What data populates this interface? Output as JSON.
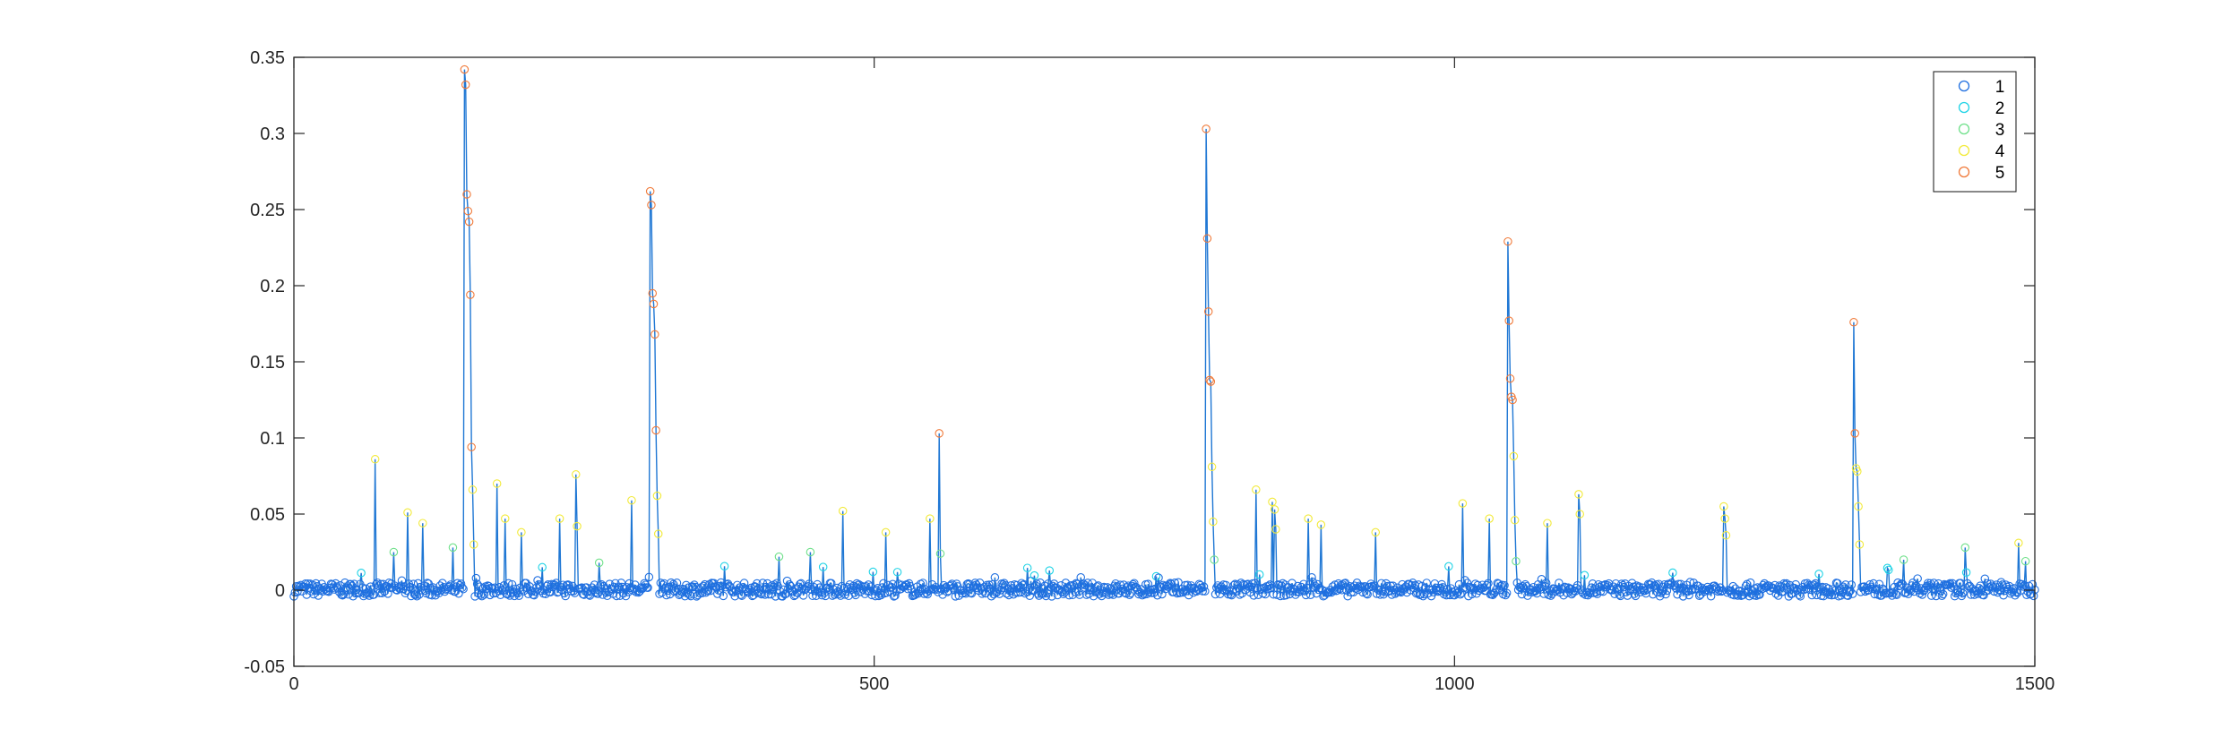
{
  "chart_data": {
    "type": "line",
    "title": "",
    "xlabel": "",
    "ylabel": "",
    "xlim": [
      0,
      1500
    ],
    "ylim": [
      -0.05,
      0.35
    ],
    "x_ticks": [
      0,
      500,
      1000,
      1500
    ],
    "x_tick_labels": [
      "0",
      "500",
      "1000",
      "1500"
    ],
    "y_ticks": [
      -0.05,
      0,
      0.05,
      0.1,
      0.15,
      0.2,
      0.25,
      0.3,
      0.35
    ],
    "y_tick_labels": [
      "-0.05",
      "0",
      "0.05",
      "0.1",
      "0.15",
      "0.2",
      "0.25",
      "0.3",
      "0.35"
    ],
    "grid": false,
    "legend_position": "top-right",
    "line_color": "#1f77d4",
    "marker": "circle",
    "legend": [
      {
        "label": "1",
        "color": "#1f6fe0"
      },
      {
        "label": "2",
        "color": "#1fd3e6"
      },
      {
        "label": "3",
        "color": "#6fe08a"
      },
      {
        "label": "4",
        "color": "#f2ea3a"
      },
      {
        "label": "5",
        "color": "#f07a3a"
      }
    ],
    "class_thresholds": [
      0.009,
      0.016,
      0.03,
      0.09
    ],
    "baseline_noise": 0.0045,
    "peaks": [
      {
        "x": 70,
        "y": 0.086
      },
      {
        "x": 86,
        "y": 0.025
      },
      {
        "x": 98,
        "y": 0.051
      },
      {
        "x": 111,
        "y": 0.044
      },
      {
        "x": 137,
        "y": 0.028
      },
      {
        "x": 147,
        "y": 0.342
      },
      {
        "x": 148,
        "y": 0.332
      },
      {
        "x": 149,
        "y": 0.26
      },
      {
        "x": 150,
        "y": 0.249
      },
      {
        "x": 151,
        "y": 0.242
      },
      {
        "x": 152,
        "y": 0.194
      },
      {
        "x": 153,
        "y": 0.094
      },
      {
        "x": 154,
        "y": 0.066
      },
      {
        "x": 155,
        "y": 0.03
      },
      {
        "x": 175,
        "y": 0.07
      },
      {
        "x": 182,
        "y": 0.047
      },
      {
        "x": 196,
        "y": 0.038
      },
      {
        "x": 229,
        "y": 0.047
      },
      {
        "x": 243,
        "y": 0.076
      },
      {
        "x": 244,
        "y": 0.042
      },
      {
        "x": 263,
        "y": 0.018
      },
      {
        "x": 291,
        "y": 0.059
      },
      {
        "x": 307,
        "y": 0.262
      },
      {
        "x": 308,
        "y": 0.253
      },
      {
        "x": 309,
        "y": 0.195
      },
      {
        "x": 310,
        "y": 0.188
      },
      {
        "x": 311,
        "y": 0.168
      },
      {
        "x": 312,
        "y": 0.105
      },
      {
        "x": 313,
        "y": 0.062
      },
      {
        "x": 314,
        "y": 0.037
      },
      {
        "x": 418,
        "y": 0.022
      },
      {
        "x": 445,
        "y": 0.025
      },
      {
        "x": 473,
        "y": 0.052
      },
      {
        "x": 510,
        "y": 0.038
      },
      {
        "x": 548,
        "y": 0.047
      },
      {
        "x": 556,
        "y": 0.103
      },
      {
        "x": 557,
        "y": 0.024
      },
      {
        "x": 786,
        "y": 0.303
      },
      {
        "x": 787,
        "y": 0.231
      },
      {
        "x": 788,
        "y": 0.183
      },
      {
        "x": 789,
        "y": 0.138
      },
      {
        "x": 790,
        "y": 0.137
      },
      {
        "x": 791,
        "y": 0.081
      },
      {
        "x": 792,
        "y": 0.045
      },
      {
        "x": 793,
        "y": 0.02
      },
      {
        "x": 829,
        "y": 0.066
      },
      {
        "x": 843,
        "y": 0.058
      },
      {
        "x": 845,
        "y": 0.053
      },
      {
        "x": 846,
        "y": 0.04
      },
      {
        "x": 874,
        "y": 0.047
      },
      {
        "x": 885,
        "y": 0.043
      },
      {
        "x": 932,
        "y": 0.038
      },
      {
        "x": 1007,
        "y": 0.057
      },
      {
        "x": 1030,
        "y": 0.047
      },
      {
        "x": 1046,
        "y": 0.229
      },
      {
        "x": 1047,
        "y": 0.177
      },
      {
        "x": 1048,
        "y": 0.139
      },
      {
        "x": 1049,
        "y": 0.127
      },
      {
        "x": 1050,
        "y": 0.125
      },
      {
        "x": 1051,
        "y": 0.088
      },
      {
        "x": 1052,
        "y": 0.046
      },
      {
        "x": 1053,
        "y": 0.019
      },
      {
        "x": 1080,
        "y": 0.044
      },
      {
        "x": 1107,
        "y": 0.063
      },
      {
        "x": 1108,
        "y": 0.05
      },
      {
        "x": 1232,
        "y": 0.055
      },
      {
        "x": 1233,
        "y": 0.047
      },
      {
        "x": 1234,
        "y": 0.036
      },
      {
        "x": 1344,
        "y": 0.176
      },
      {
        "x": 1345,
        "y": 0.103
      },
      {
        "x": 1346,
        "y": 0.08
      },
      {
        "x": 1347,
        "y": 0.078
      },
      {
        "x": 1348,
        "y": 0.055
      },
      {
        "x": 1349,
        "y": 0.03
      },
      {
        "x": 1387,
        "y": 0.02
      },
      {
        "x": 1440,
        "y": 0.028
      },
      {
        "x": 1486,
        "y": 0.031
      },
      {
        "x": 1492,
        "y": 0.019
      }
    ]
  }
}
